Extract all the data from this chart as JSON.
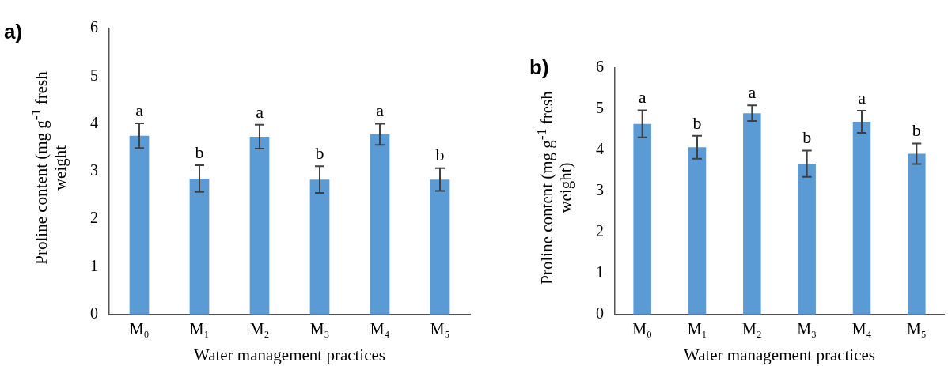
{
  "chart_data": [
    {
      "type": "bar",
      "ylabel": "Proline content (mg g$^{-1}$ fresh weight",
      "xlabel": "Water management practices",
      "categories": [
        "M₀",
        "M₁",
        "M₂",
        "M₃",
        "M₄",
        "M₅"
      ],
      "values": [
        3.75,
        2.85,
        3.73,
        2.83,
        3.78,
        2.83
      ],
      "color": "#5b9bd5",
      "errors": [
        0.26,
        0.28,
        0.25,
        0.28,
        0.22,
        0.24
      ],
      "ylim": [
        0,
        6
      ],
      "yticks": [
        0,
        1,
        2,
        3,
        4,
        5,
        6
      ],
      "grid": false,
      "legend": false,
      "annotations": [
        "a)",
        "a",
        "b",
        "a",
        "b",
        "a",
        "b"
      ]
    },
    {
      "type": "bar",
      "ylabel": "Proline content (mg g$^{-1}$ fresh weight)",
      "xlabel": "Water management practices",
      "categories": [
        "M₀",
        "M₁",
        "M₂",
        "M₃",
        "M₄",
        "M₅"
      ],
      "values": [
        4.64,
        4.07,
        4.9,
        3.67,
        4.69,
        3.91
      ],
      "color": "#5b9bd5",
      "errors": [
        0.33,
        0.28,
        0.19,
        0.32,
        0.27,
        0.25
      ],
      "ylim": [
        0,
        6
      ],
      "yticks": [
        0,
        1,
        2,
        3,
        4,
        5,
        6
      ],
      "grid": false,
      "legend": false,
      "annotations": [
        "b)",
        "a",
        "b",
        "a",
        "b",
        "a",
        "b"
      ]
    }
  ]
}
